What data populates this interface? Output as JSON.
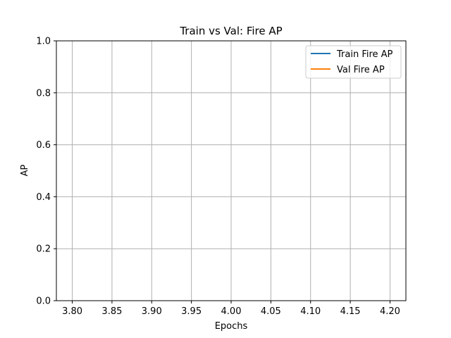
{
  "chart_data": {
    "type": "line",
    "title": "Train vs Val: Fire AP",
    "xlabel": "Epochs",
    "ylabel": "AP",
    "xlim": [
      3.78,
      4.22
    ],
    "ylim": [
      0.0,
      1.0
    ],
    "xticks": [
      3.8,
      3.85,
      3.9,
      3.95,
      4.0,
      4.05,
      4.1,
      4.15,
      4.2
    ],
    "xtick_labels": [
      "3.80",
      "3.85",
      "3.90",
      "3.95",
      "4.00",
      "4.05",
      "4.10",
      "4.15",
      "4.20"
    ],
    "yticks": [
      0.0,
      0.2,
      0.4,
      0.6,
      0.8,
      1.0
    ],
    "ytick_labels": [
      "0.0",
      "0.2",
      "0.4",
      "0.6",
      "0.8",
      "1.0"
    ],
    "grid": true,
    "legend_position": "top-right",
    "series": [
      {
        "name": "Train Fire AP",
        "color": "#1f77b4",
        "x": [],
        "y": []
      },
      {
        "name": "Val Fire AP",
        "color": "#ff7f0e",
        "x": [],
        "y": []
      }
    ]
  }
}
